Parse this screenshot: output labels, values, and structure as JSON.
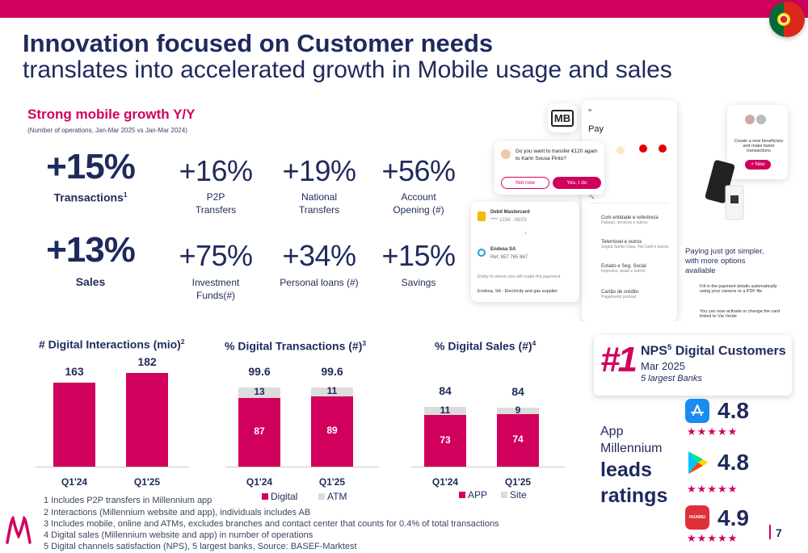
{
  "header": {
    "title_line1": "Innovation focused on Customer needs",
    "title_line2": "translates into accelerated growth in Mobile usage and sales"
  },
  "growth": {
    "title": "Strong mobile growth Y/Y",
    "subtitle": "(Number of operations, Jan-Mar 2025 vs Jan-Mar 2024)",
    "main": [
      {
        "value": "+15%",
        "label": "Transactions",
        "sup": "1"
      },
      {
        "value": "+13%",
        "label": "Sales",
        "sup": ""
      }
    ],
    "row1": [
      {
        "value": "+16%",
        "label1": "P2P",
        "label2": "Transfers"
      },
      {
        "value": "+19%",
        "label1": "National",
        "label2": "Transfers"
      },
      {
        "value": "+56%",
        "label1": "Account",
        "label2": "Opening (#)"
      }
    ],
    "row2": [
      {
        "value": "+75%",
        "label1": "Investment",
        "label2": "Funds(#)"
      },
      {
        "value": "+34%",
        "label1": "Personal loans (#)",
        "label2": ""
      },
      {
        "value": "+15%",
        "label1": "Savings",
        "label2": ""
      }
    ]
  },
  "mockups": {
    "logo": "MB",
    "pay_title": "Pay",
    "transfer_prompt": "Do you want to transfer €120 again to Karin Sousa Pinto?",
    "not_now": "Not now",
    "yes_do": "Yes, I do",
    "debit_card": "Debit Mastercard",
    "card_number": "**** 1234 · 09/23",
    "endesa": "Endesa SA",
    "endesa_ref": "Ref. 657 765 867",
    "entity_prompt": "Entity to whom you will make the payment",
    "entity_value": "Endesa, SA - Electricity and gas supplier",
    "list_items": [
      "Com entidade e referência",
      "Telemóvel e outros",
      "Estado e Seg. Social",
      "Cartão de crédito"
    ],
    "list_subs": [
      "Faturas, serviços e outros",
      "Sogea Santa Casa, Via Card e outros",
      "Impostos, taxas e outros",
      "Pagamento pontual"
    ],
    "beneficiary_text": "Create a new beneficiary and make faster transactions",
    "new_button": "+ New",
    "paying_just": "Paying just got simpler, with more options available",
    "fill_text": "Fill in the payment details automatically using your camera or a PDF file",
    "activate_text": "You can now activate or change the card linked to Via Verde"
  },
  "chart_data": [
    {
      "type": "bar",
      "title": "# Digital Interactions (mio)",
      "title_sup": "2",
      "categories": [
        "Q1'24",
        "Q1'25"
      ],
      "values": [
        163,
        182
      ],
      "value_labels": [
        "163",
        "182"
      ]
    },
    {
      "type": "bar",
      "title": "% Digital Transactions (#)",
      "title_sup": "3",
      "categories": [
        "Q1'24",
        "Q1'25"
      ],
      "totals": [
        "99.6",
        "99.6"
      ],
      "series": [
        {
          "name": "Digital",
          "values": [
            87,
            89
          ]
        },
        {
          "name": "ATM",
          "values": [
            13,
            11
          ]
        }
      ]
    },
    {
      "type": "bar",
      "title": "% Digital Sales (#)",
      "title_sup": "4",
      "categories": [
        "Q1'24",
        "Q1'25"
      ],
      "totals": [
        "84",
        "84"
      ],
      "series": [
        {
          "name": "APP",
          "values": [
            73,
            74
          ]
        },
        {
          "name": "Site",
          "values": [
            11,
            9
          ]
        }
      ]
    }
  ],
  "nps": {
    "rank": "#1",
    "title": "NPS",
    "title_sup": "5",
    "title_rest": "Digital Customers",
    "period": "Mar 2025",
    "note": "5 largest Banks"
  },
  "ratings": {
    "app_line1": "App",
    "app_line2": "Millennium",
    "leads": "leads",
    "ratings_word": "ratings",
    "stores": [
      {
        "icon": "app-store-icon",
        "value": "4.8"
      },
      {
        "icon": "google-play-icon",
        "value": "4.8"
      },
      {
        "icon": "huawei-appgallery-icon",
        "value": "4.9"
      }
    ],
    "stars": "★★★★★",
    "huawei_label": "HUAWEI"
  },
  "footnotes": [
    "1 Includes P2P transfers in Millennium app",
    "2 Interactions (Millennium website and app), individuals includes AB",
    "3 Includes mobile, online and ATMs, excludes branches and contact center that counts for 0.4% of total transactions",
    "4 Digital sales (Millennium website and app) in number of operations",
    "5 Digital channels satisfaction (NPS), 5 largest banks, Source: BASEF-Marktest"
  ],
  "page_number": "7",
  "colors": {
    "brand": "#d1005d",
    "navy": "#1f2a5c",
    "atm": "#dcdcdc"
  }
}
